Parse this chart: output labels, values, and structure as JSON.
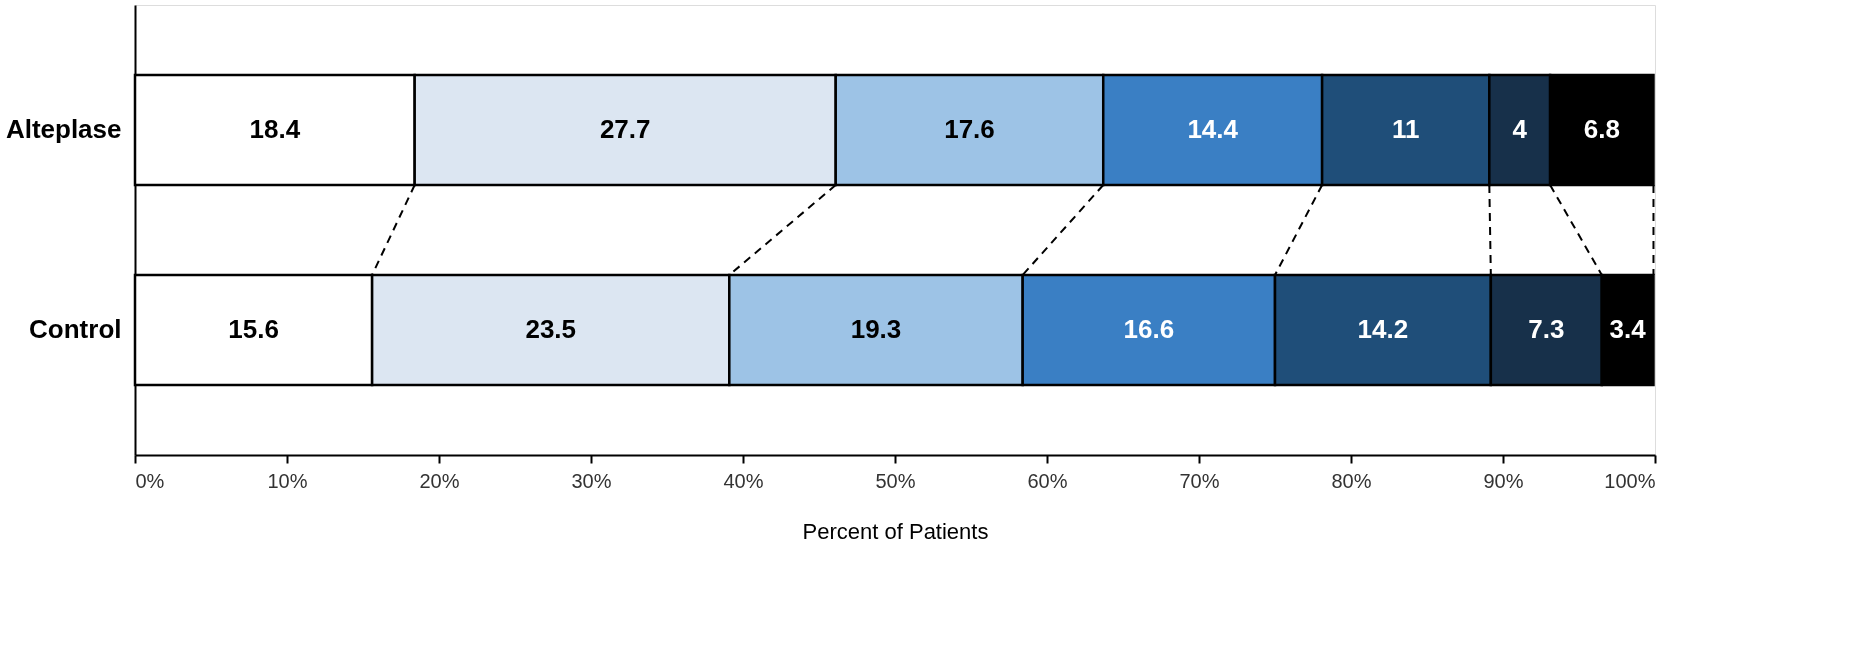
{
  "chart_data": {
    "type": "bar",
    "orientation": "horizontal",
    "stacked": true,
    "data_labels": true,
    "legend": false,
    "grid": false,
    "xlabel": "Percent of Patients",
    "categories": [
      "Alteplase",
      "Control"
    ],
    "xlim": [
      0,
      100
    ],
    "xticks": [
      {
        "value": 0,
        "label": "0%"
      },
      {
        "value": 10,
        "label": "10%"
      },
      {
        "value": 20,
        "label": "20%"
      },
      {
        "value": 30,
        "label": "30%"
      },
      {
        "value": 40,
        "label": "40%"
      },
      {
        "value": 50,
        "label": "50%"
      },
      {
        "value": 60,
        "label": "60%"
      },
      {
        "value": 70,
        "label": "70%"
      },
      {
        "value": 80,
        "label": "80%"
      },
      {
        "value": 90,
        "label": "90%"
      },
      {
        "value": 100,
        "label": "100%"
      }
    ],
    "series": [
      {
        "color": "#ffffff",
        "values": [
          18.4,
          15.6
        ]
      },
      {
        "color": "#dce6f2",
        "values": [
          27.7,
          23.5
        ]
      },
      {
        "color": "#9dc3e6",
        "values": [
          17.6,
          19.3
        ]
      },
      {
        "color": "#3a7fc4",
        "values": [
          14.4,
          16.6
        ]
      },
      {
        "color": "#1f4e79",
        "values": [
          11,
          14.2
        ]
      },
      {
        "color": "#17304a",
        "values": [
          4,
          7.3
        ]
      },
      {
        "color": "#000000",
        "values": [
          6.8,
          3.4
        ]
      }
    ]
  }
}
